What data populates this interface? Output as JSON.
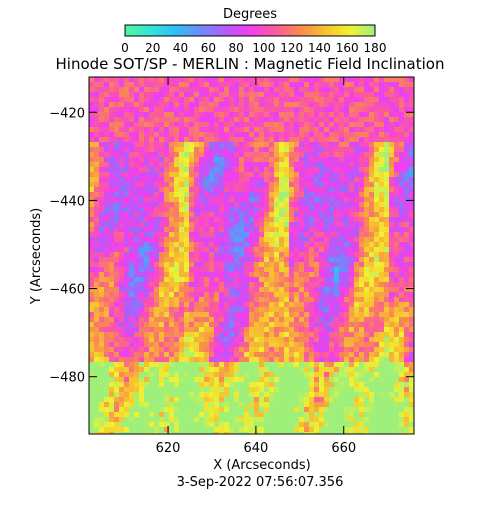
{
  "colorbar": {
    "title": "Degrees",
    "ticks": [
      "0",
      "20",
      "40",
      "60",
      "80",
      "100",
      "120",
      "140",
      "160",
      "180"
    ],
    "range": [
      0,
      180
    ],
    "colormap": [
      "#53f59a",
      "#33e6d8",
      "#2fc0f4",
      "#6d8cfc",
      "#b45cfa",
      "#f13ff0",
      "#fb5aa0",
      "#f98a52",
      "#f7c030",
      "#f2f230",
      "#9ef07a"
    ]
  },
  "chart_data": {
    "type": "heatmap",
    "title": "Hinode SOT/SP - MERLIN : Magnetic Field Inclination",
    "xlabel": "X (Arcseconds)",
    "ylabel": "Y (Arcseconds)",
    "xlim": [
      602,
      676
    ],
    "ylim": [
      -493,
      -412
    ],
    "x_ticks": [
      620,
      640,
      660
    ],
    "y_ticks": [
      -420,
      -440,
      -460,
      -480
    ],
    "value_range": [
      0,
      180
    ],
    "value_unit": "Degrees",
    "grid": false
  },
  "timestamp": "3-Sep-2022 07:56:07.356"
}
